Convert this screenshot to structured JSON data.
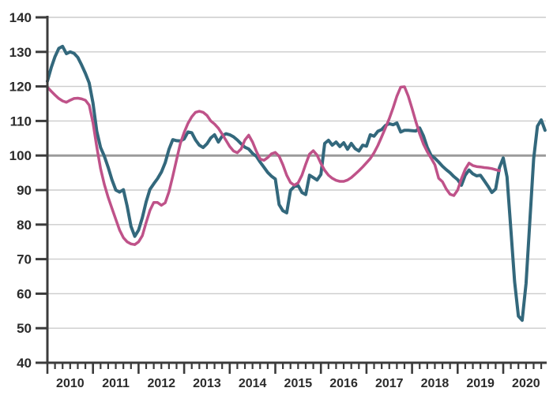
{
  "chart_data": {
    "type": "line",
    "title": "",
    "x_axis": {
      "unit": "month",
      "start": "2010-01",
      "year_labels": [
        "2010",
        "2011",
        "2012",
        "2013",
        "2014",
        "2015",
        "2016",
        "2017",
        "2018",
        "2019",
        "2020"
      ],
      "minor_ticks_per_year": 6
    },
    "y_axis": {
      "min": 40,
      "max": 140,
      "tick_step": 10,
      "tick_labels": [
        "140",
        "130",
        "120",
        "110",
        "100",
        "90",
        "80",
        "70",
        "60",
        "50",
        "40"
      ],
      "reference_line": 100
    },
    "grid": true,
    "legend": false,
    "series": [
      {
        "name": "teal-indicator",
        "color": "#33687c",
        "stroke_width": 4,
        "values": [
          121.5,
          125.4,
          128.6,
          131.0,
          131.6,
          129.5,
          130.0,
          129.6,
          128.4,
          126.2,
          123.8,
          121.0,
          115.2,
          107.0,
          102.3,
          99.8,
          96.6,
          93.0,
          90.0,
          89.4,
          90.1,
          85.3,
          79.5,
          76.6,
          78.4,
          82.0,
          86.6,
          90.2,
          91.8,
          93.3,
          95.2,
          97.9,
          101.8,
          104.6,
          104.3,
          104.2,
          104.8,
          106.8,
          106.6,
          104.5,
          103.0,
          102.3,
          103.4,
          105.1,
          106.0,
          103.9,
          105.6,
          106.3,
          106.0,
          105.4,
          104.5,
          103.4,
          102.4,
          101.9,
          100.6,
          99.8,
          98.1,
          96.6,
          95.1,
          94.0,
          93.2,
          85.8,
          84.0,
          83.4,
          89.9,
          91.0,
          91.3,
          89.3,
          88.7,
          94.3,
          93.6,
          92.9,
          94.5,
          103.5,
          104.4,
          103.0,
          103.9,
          102.6,
          103.7,
          101.8,
          103.5,
          102.0,
          101.3,
          103.0,
          102.7,
          106.0,
          105.6,
          107.0,
          107.5,
          108.7,
          109.2,
          108.9,
          109.4,
          106.8,
          107.3,
          107.3,
          107.2,
          107.1,
          108.0,
          105.7,
          102.4,
          100.1,
          99.2,
          98.1,
          96.9,
          95.9,
          95.0,
          93.9,
          93.0,
          91.4,
          94.3,
          95.8,
          94.7,
          94.1,
          94.3,
          92.7,
          91.1,
          89.3,
          90.3,
          96.5,
          99.3,
          93.8,
          78.8,
          63.5,
          53.5,
          52.3,
          63.0,
          81.0,
          99.0,
          108.5,
          110.3,
          107.3
        ]
      },
      {
        "name": "pink-indicator",
        "color": "#bf5289",
        "stroke_width": 3.5,
        "values": [
          119.8,
          118.6,
          117.5,
          116.5,
          115.8,
          115.4,
          116.0,
          116.5,
          116.6,
          116.4,
          116.0,
          114.6,
          109.5,
          102.5,
          96.2,
          91.6,
          87.9,
          84.7,
          81.5,
          78.4,
          76.2,
          75.0,
          74.4,
          74.2,
          75.0,
          76.8,
          80.6,
          84.1,
          86.4,
          86.4,
          85.6,
          86.3,
          89.5,
          94.0,
          98.8,
          103.5,
          106.7,
          109.3,
          111.2,
          112.5,
          112.8,
          112.5,
          111.6,
          110.0,
          109.1,
          107.9,
          106.2,
          104.4,
          102.6,
          101.3,
          100.8,
          101.9,
          104.5,
          105.9,
          103.9,
          101.2,
          99.0,
          98.6,
          99.4,
          100.5,
          100.9,
          99.8,
          97.3,
          94.3,
          92.2,
          91.4,
          92.1,
          94.3,
          97.5,
          100.4,
          101.4,
          100.1,
          97.7,
          95.7,
          94.3,
          93.4,
          92.8,
          92.5,
          92.5,
          92.9,
          93.6,
          94.6,
          95.6,
          96.7,
          97.9,
          99.1,
          100.8,
          102.9,
          105.4,
          108.0,
          110.7,
          113.8,
          117.2,
          119.8,
          119.9,
          117.2,
          113.6,
          109.8,
          106.3,
          103.3,
          101.1,
          99.3,
          97.3,
          93.4,
          92.4,
          90.3,
          88.8,
          88.4,
          90.0,
          93.3,
          96.0,
          97.8,
          97.1,
          96.8,
          96.7,
          96.5,
          96.4,
          96.2,
          95.9,
          95.6
        ]
      }
    ]
  },
  "colors": {
    "background": "#ffffff",
    "grid": "#cccccc",
    "reference_line": "#9b9b9b",
    "axis": "#3b3b3b",
    "tick_label": "#2b2b2b"
  }
}
